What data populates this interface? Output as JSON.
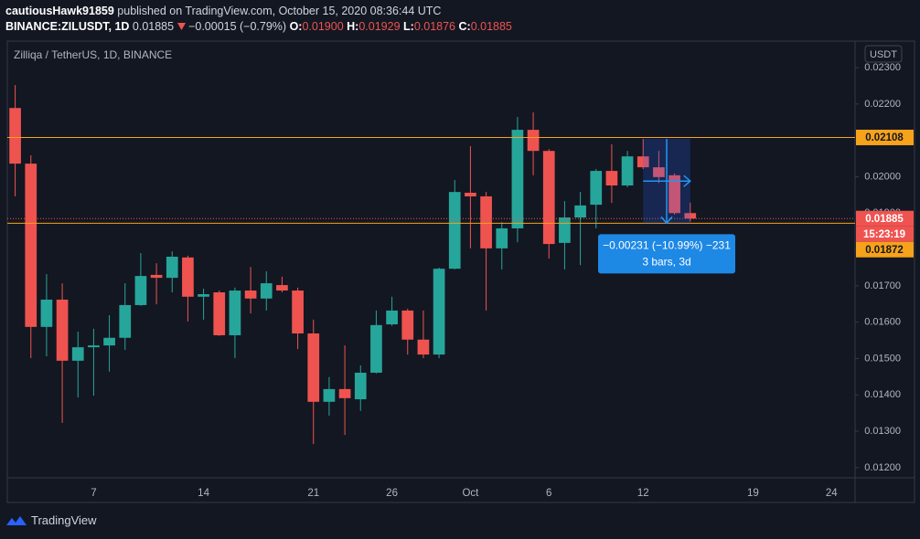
{
  "header": {
    "user": "cautiousHawk91859",
    "published": "published on TradingView.com, October 15, 2020 08:36:44 UTC",
    "symbol": "BINANCE:ZILUSDT, 1D",
    "last": "0.01885",
    "change": "−0.00015 (−0.79%)",
    "ohlc": [
      {
        "label": "O:",
        "value": "0.01900"
      },
      {
        "label": "H:",
        "value": "0.01929"
      },
      {
        "label": "L:",
        "value": "0.01876"
      },
      {
        "label": "C:",
        "value": "0.01885"
      }
    ]
  },
  "chart_data": {
    "type": "candlestick",
    "title": "Zilliqa / TetherUS, 1D, BINANCE",
    "currency": "USDT",
    "categories": [
      null,
      null,
      null,
      null,
      null,
      "7",
      null,
      null,
      null,
      null,
      null,
      null,
      "14",
      null,
      null,
      null,
      null,
      null,
      null,
      "21",
      null,
      null,
      null,
      null,
      "26",
      null,
      null,
      null,
      null,
      "Oct",
      null,
      null,
      null,
      null,
      "6",
      null,
      null,
      null,
      null,
      null,
      "12",
      null,
      null,
      null,
      null,
      null,
      null,
      "19",
      null,
      null,
      null,
      null,
      "24",
      null
    ],
    "open": [
      0.02189,
      0.02036,
      0.01587,
      0.01662,
      0.01494,
      0.01531,
      0.01536,
      0.01557,
      0.01647,
      0.0173,
      0.01722,
      0.01778,
      0.0167,
      0.01682,
      0.01564,
      0.01687,
      0.01665,
      0.01702,
      0.01687,
      0.01569,
      0.01381,
      0.01416,
      0.01388,
      0.01461,
      0.01594,
      0.01632,
      0.01552,
      0.01511,
      0.01747,
      0.01956,
      0.01946,
      0.01803,
      0.01858,
      0.02129,
      0.02071,
      0.01818,
      0.01888,
      0.01923,
      0.02016,
      0.01976,
      0.02056,
      0.02026,
      0.02004,
      0.019,
      null,
      null,
      null,
      null,
      null,
      null,
      null,
      null,
      null,
      null
    ],
    "high": [
      0.02252,
      0.02059,
      0.01732,
      0.01707,
      0.01574,
      0.01582,
      0.01619,
      0.01707,
      0.0179,
      0.01762,
      0.01795,
      0.01783,
      0.01692,
      0.01687,
      0.01695,
      0.01752,
      0.0174,
      0.01725,
      0.01695,
      0.01607,
      0.01449,
      0.01536,
      0.01481,
      0.01632,
      0.0167,
      0.01637,
      0.01632,
      0.0175,
      0.01991,
      0.02084,
      0.01958,
      0.01875,
      0.02164,
      0.02177,
      0.02076,
      0.01933,
      0.01958,
      0.02021,
      0.02089,
      0.02071,
      0.02104,
      0.02071,
      0.02009,
      0.01929,
      null,
      null,
      null,
      null,
      null,
      null,
      null,
      null,
      null,
      null
    ],
    "low": [
      0.01946,
      0.01501,
      0.01506,
      0.01323,
      0.01393,
      0.01398,
      0.01464,
      0.01524,
      0.01645,
      0.01649,
      0.01682,
      0.01602,
      0.01607,
      0.01562,
      0.01501,
      0.01624,
      0.01632,
      0.01682,
      0.01526,
      0.01265,
      0.01343,
      0.0129,
      0.01356,
      0.01459,
      0.0159,
      0.01511,
      0.01501,
      0.01501,
      0.01745,
      0.01803,
      0.01632,
      0.01745,
      0.0182,
      0.02004,
      0.01775,
      0.01745,
      0.01757,
      0.01858,
      0.01928,
      0.01971,
      0.02021,
      0.01983,
      0.01896,
      0.01876,
      null,
      null,
      null,
      null,
      null,
      null,
      null,
      null,
      null,
      null
    ],
    "close": [
      0.02036,
      0.01587,
      0.01662,
      0.01494,
      0.01531,
      0.01536,
      0.01557,
      0.01647,
      0.01727,
      0.01722,
      0.0178,
      0.0167,
      0.01677,
      0.01564,
      0.01687,
      0.01665,
      0.01707,
      0.01687,
      0.01569,
      0.01381,
      0.01416,
      0.01391,
      0.01461,
      0.01592,
      0.01632,
      0.01552,
      0.01511,
      0.01747,
      0.01958,
      0.01946,
      0.01803,
      0.01858,
      0.02129,
      0.02071,
      0.01815,
      0.01888,
      0.01921,
      0.02016,
      0.01976,
      0.02056,
      0.02026,
      0.01999,
      0.019,
      0.01885,
      null,
      null,
      null,
      null,
      null,
      null,
      null,
      null,
      null,
      null
    ],
    "up_color": "#26a69a",
    "down_color": "#ef5350",
    "ylim": [
      0.01172,
      0.02373
    ],
    "yticks": [
      {
        "value": 0.012,
        "label": "0.01200"
      },
      {
        "value": 0.013,
        "label": "0.01300"
      },
      {
        "value": 0.014,
        "label": "0.01400"
      },
      {
        "value": 0.015,
        "label": "0.01500"
      },
      {
        "value": 0.016,
        "label": "0.01600"
      },
      {
        "value": 0.017,
        "label": "0.01700"
      },
      {
        "value": 0.018,
        "label": "0.01800"
      },
      {
        "value": 0.019,
        "label": "0.01900"
      },
      {
        "value": 0.02,
        "label": "0.02000"
      },
      {
        "value": 0.021,
        "label": "0.02100"
      },
      {
        "value": 0.022,
        "label": "0.02200"
      },
      {
        "value": 0.023,
        "label": "0.02300"
      }
    ],
    "grid": false,
    "hlines": [
      {
        "value": 0.02108,
        "color": "#f7a21b"
      },
      {
        "value": 0.01872,
        "color": "#f7a21b"
      }
    ],
    "last_price": {
      "value": 0.01885,
      "countdown": "15:23:19",
      "color": "#ef5350"
    },
    "measure": {
      "text": "−0.00231 (−10.99%) −231",
      "subtext": "3 bars, 3d"
    }
  },
  "footer": {
    "brand": "TradingView"
  }
}
